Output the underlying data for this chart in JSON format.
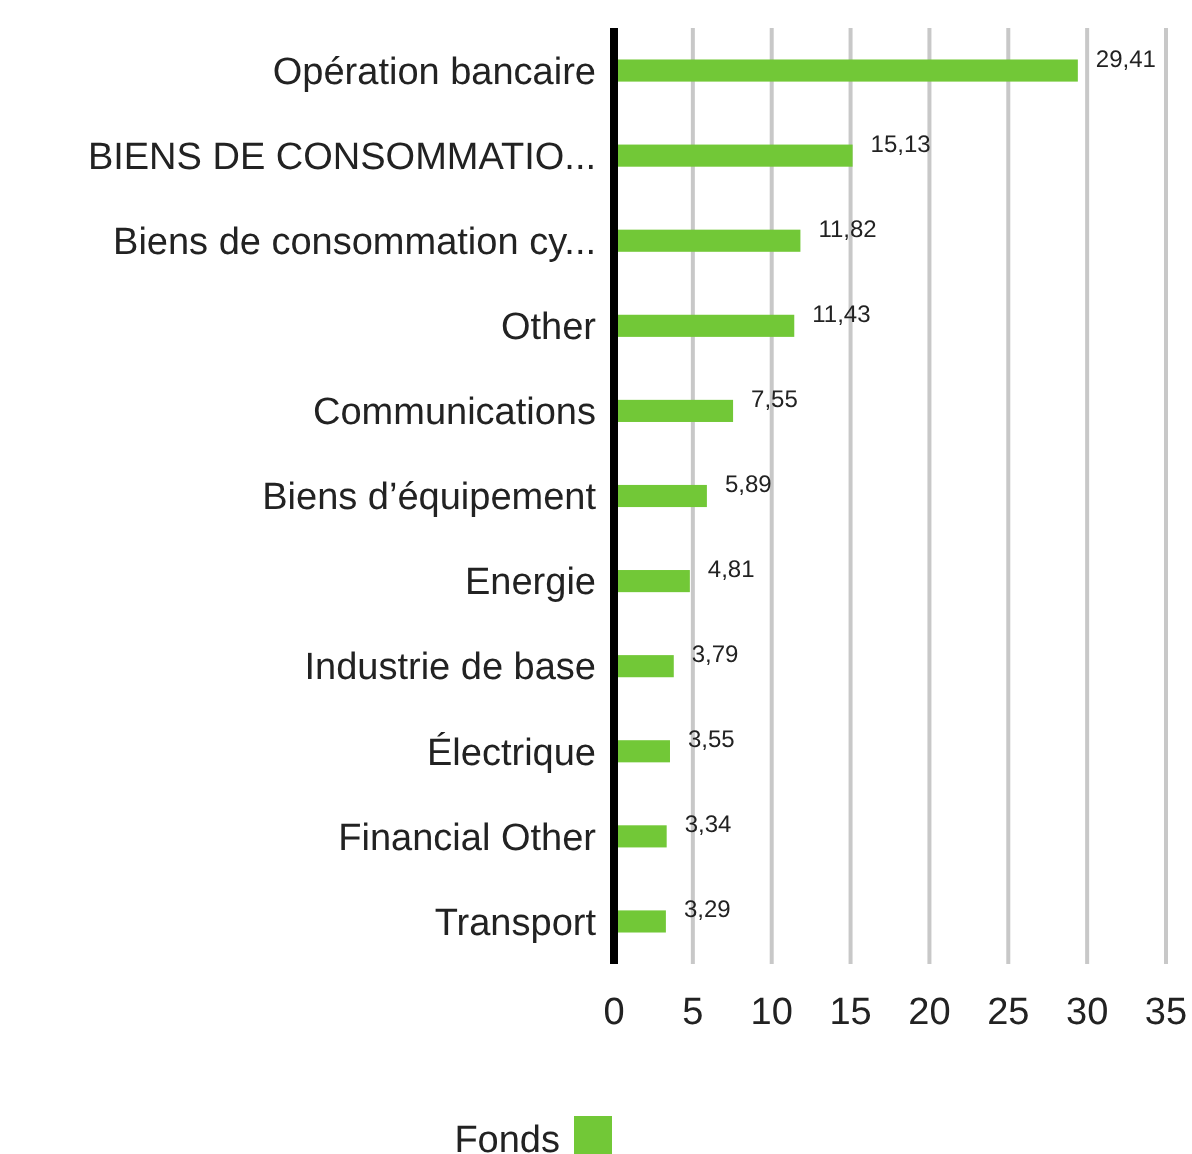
{
  "chart_data": {
    "type": "bar",
    "orientation": "horizontal",
    "categories": [
      "Opération bancaire",
      "BIENS DE CONSOMMATIO...",
      "Biens de consommation cy...",
      "Other",
      "Communications",
      "Biens d’équipement",
      "Energie",
      "Industrie de base",
      "Électrique",
      "Financial Other",
      "Transport"
    ],
    "series": [
      {
        "name": "Fonds",
        "color": "#72c837",
        "values": [
          29.41,
          15.13,
          11.82,
          11.43,
          7.55,
          5.89,
          4.81,
          3.79,
          3.55,
          3.34,
          3.29
        ],
        "value_labels": [
          "29,41",
          "15,13",
          "11,82",
          "11,43",
          "7,55",
          "5,89",
          "4,81",
          "3,79",
          "3,55",
          "3,34",
          "3,29"
        ]
      }
    ],
    "xlim": [
      0,
      35
    ],
    "xticks": [
      0,
      5,
      10,
      15,
      20,
      25,
      30,
      35
    ],
    "grid": "x",
    "legend": "bottom"
  }
}
